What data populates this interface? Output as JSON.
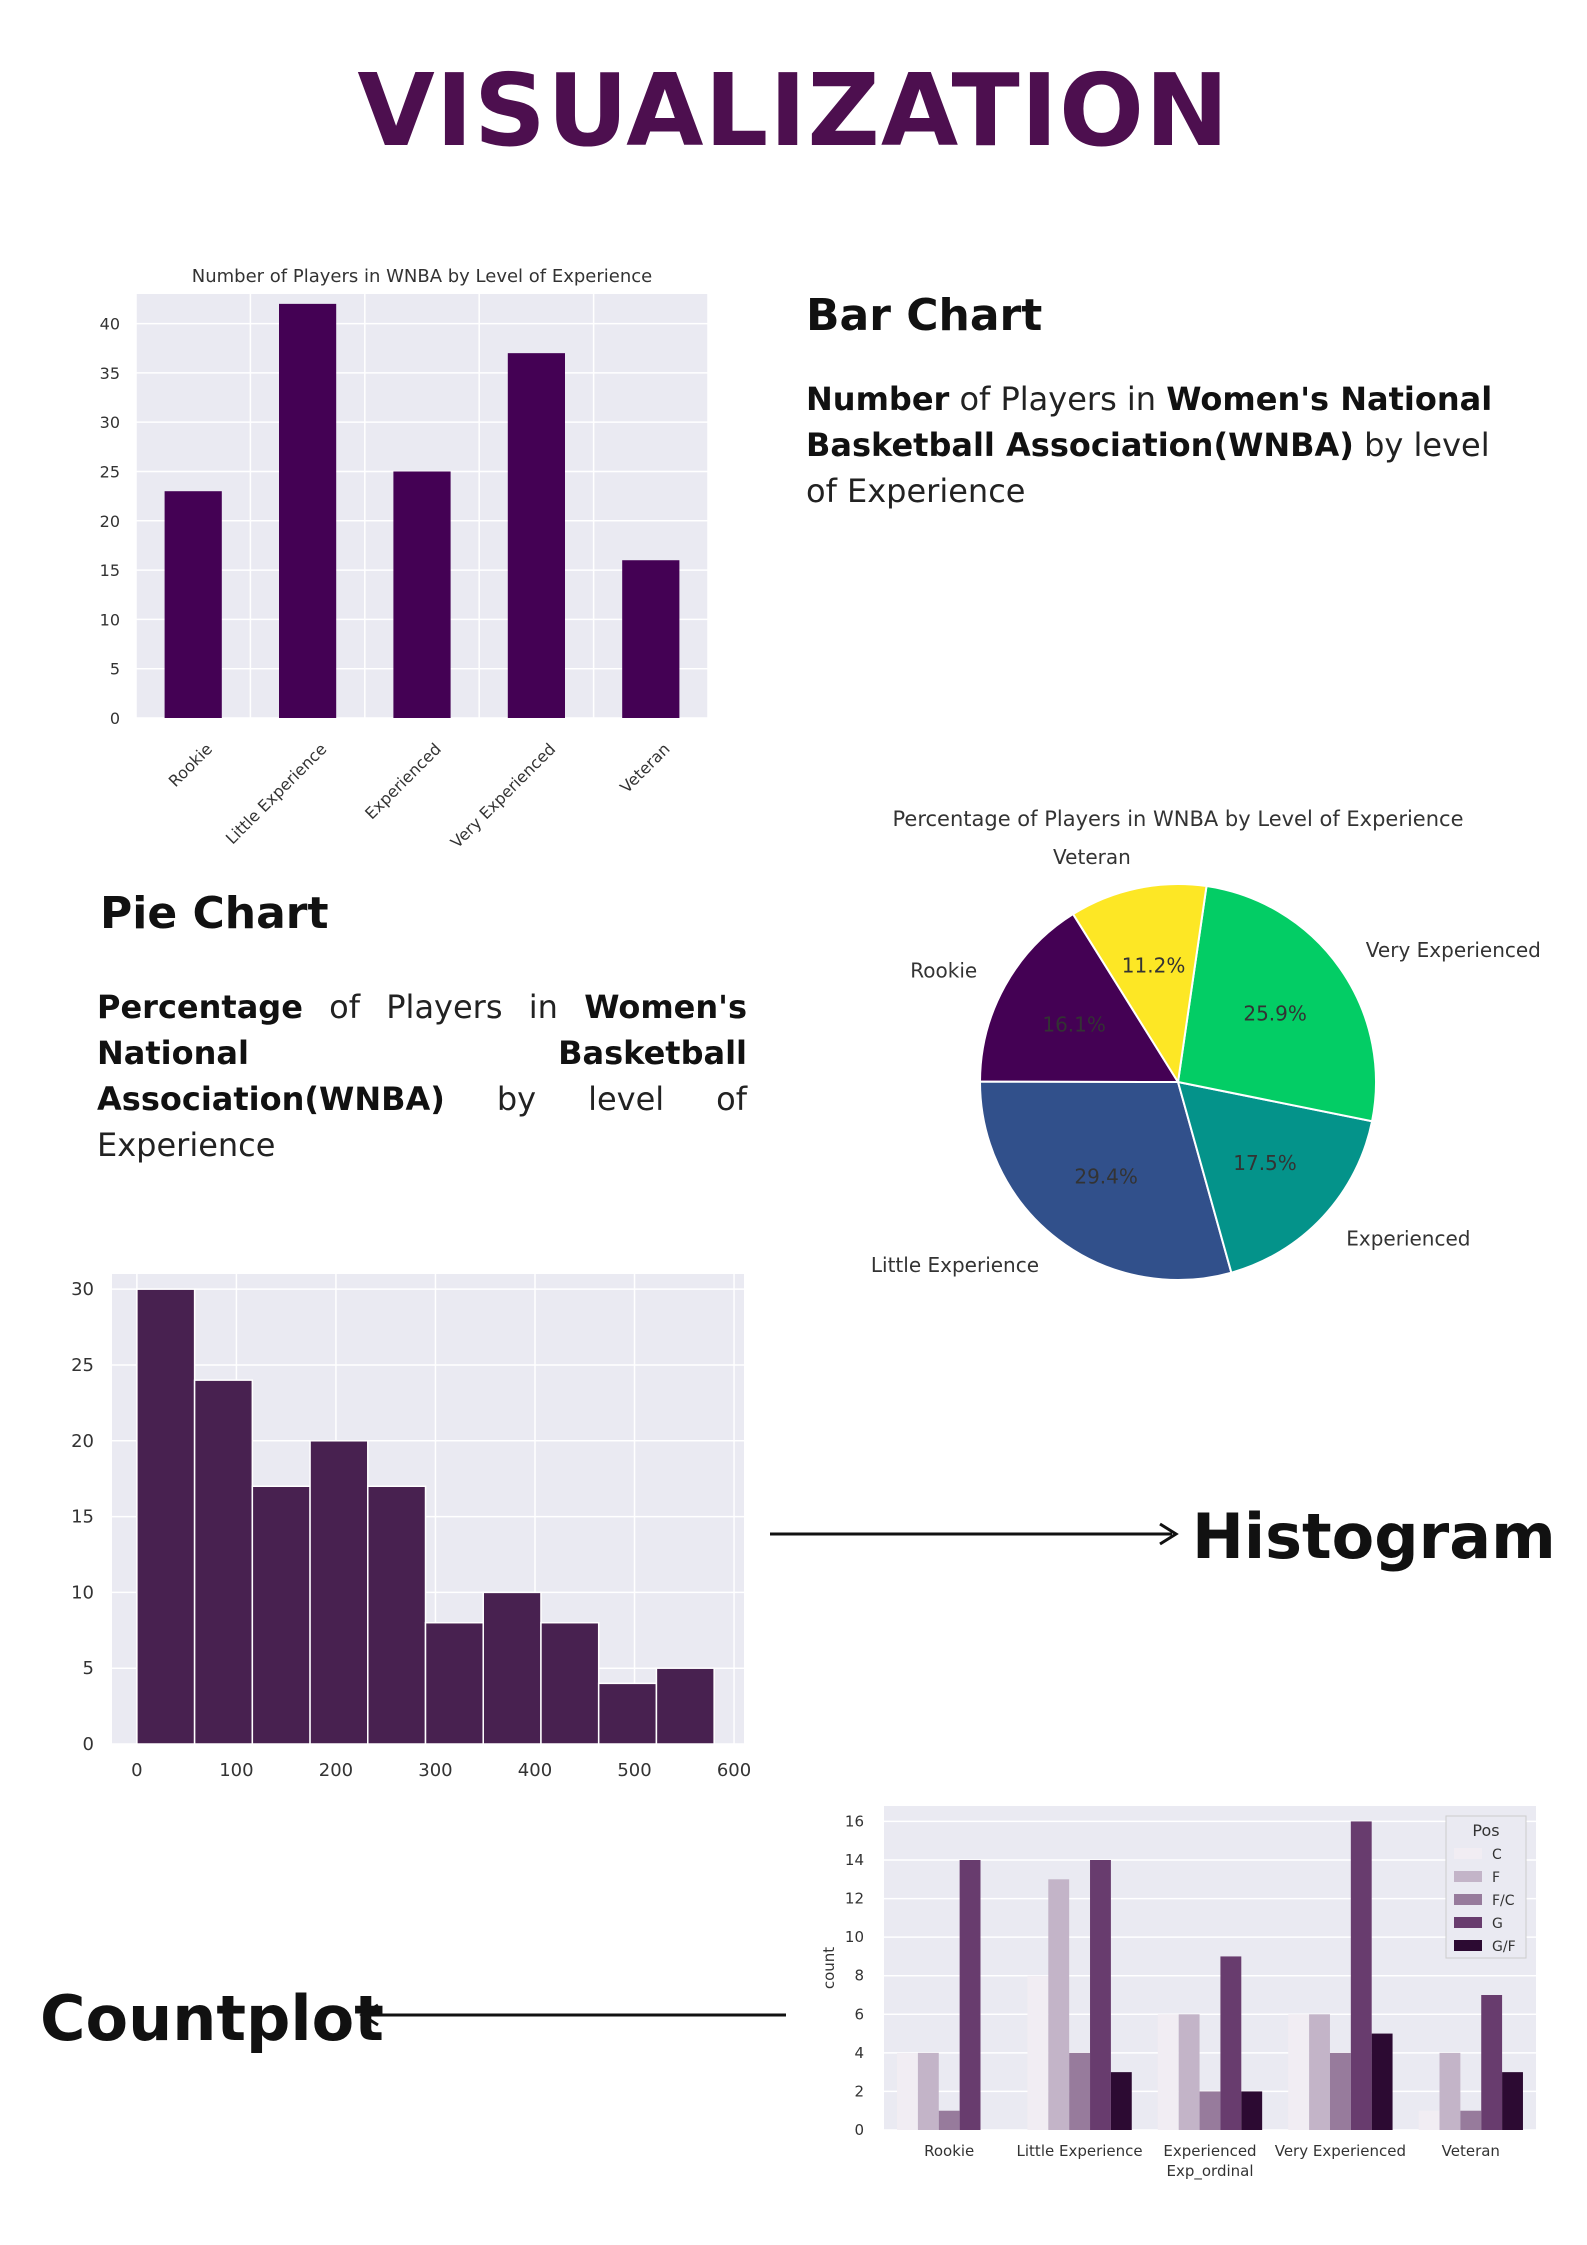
{
  "page": {
    "title": "VISUALIZATION"
  },
  "sections": {
    "bar": {
      "heading": "Bar Chart",
      "desc_bold1": "Number",
      "desc_text1": " of Players in ",
      "desc_bold2": "Women's National Basketball Association(WNBA)",
      "desc_text2": " by level of Experience"
    },
    "pie": {
      "heading": "Pie Chart",
      "desc_bold1": "Percentage",
      "desc_text1": " of Players in ",
      "desc_bold2": "Women's National Basketball Association(WNBA)",
      "desc_text2": " by level of Experience"
    },
    "histogram": {
      "heading": "Histogram"
    },
    "countplot": {
      "heading": "Countplot"
    }
  },
  "colors": {
    "title": "#4d0f4f",
    "bar_fill": "#440154",
    "hist_fill": "#482150",
    "plot_bg": "#eaeaf2"
  },
  "chart_data": [
    {
      "type": "bar",
      "title": "Number of Players in WNBA by Level of Experience",
      "categories": [
        "Rookie",
        "Little Experience",
        "Experienced",
        "Very Experienced",
        "Veteran"
      ],
      "values": [
        23,
        42,
        25,
        37,
        16
      ],
      "ylim": [
        0,
        43
      ],
      "yticks": [
        0,
        5,
        10,
        15,
        20,
        25,
        30,
        35,
        40
      ],
      "xlabel": "",
      "ylabel": "",
      "grid": true
    },
    {
      "type": "pie",
      "title": "Percentage of Players in WNBA by Level of Experience",
      "slices": [
        {
          "label": "Rookie",
          "pct_label": "16.1%",
          "value": 16.1,
          "color": "#440154"
        },
        {
          "label": "Little Experience",
          "pct_label": "29.4%",
          "value": 29.4,
          "color": "#31508b"
        },
        {
          "label": "Experienced",
          "pct_label": "17.5%",
          "value": 17.5,
          "color": "#04938a"
        },
        {
          "label": "Very Experienced",
          "pct_label": "25.9%",
          "value": 25.9,
          "color": "#03cd65"
        },
        {
          "label": "Veteran",
          "pct_label": "11.2%",
          "value": 11.2,
          "color": "#fde725"
        }
      ]
    },
    {
      "type": "bar",
      "subtype": "histogram",
      "title": "",
      "bin_edges": [
        0,
        58,
        116,
        174,
        232,
        290,
        348,
        406,
        464,
        522,
        580
      ],
      "counts": [
        30,
        24,
        17,
        20,
        17,
        8,
        10,
        8,
        4,
        5
      ],
      "xlim": [
        -25,
        610
      ],
      "ylim": [
        0,
        31
      ],
      "xticks": [
        0,
        100,
        200,
        300,
        400,
        500,
        600
      ],
      "yticks": [
        0,
        5,
        10,
        15,
        20,
        25,
        30
      ],
      "grid": true
    },
    {
      "type": "bar",
      "subtype": "countplot",
      "title": "",
      "categories": [
        "Rookie",
        "Little Experience",
        "Experienced",
        "Very Experienced",
        "Veteran"
      ],
      "xlabel": "Exp_ordinal",
      "ylabel": "count",
      "ylim": [
        0,
        16.8
      ],
      "yticks": [
        0,
        2,
        4,
        6,
        8,
        10,
        12,
        14,
        16
      ],
      "legend_title": "Pos",
      "legend_position": "top-right",
      "series": [
        {
          "name": "C",
          "values": [
            4,
            8,
            6,
            6,
            1
          ],
          "color": "#f1edf3"
        },
        {
          "name": "F",
          "values": [
            4,
            13,
            6,
            6,
            4
          ],
          "color": "#c3b4c8"
        },
        {
          "name": "F/C",
          "values": [
            1,
            4,
            2,
            4,
            1
          ],
          "color": "#977b9c"
        },
        {
          "name": "G",
          "values": [
            14,
            14,
            9,
            16,
            7
          ],
          "color": "#683c6e"
        },
        {
          "name": "G/F",
          "values": [
            0,
            3,
            2,
            5,
            3
          ],
          "color": "#2c0a32"
        }
      ]
    }
  ]
}
